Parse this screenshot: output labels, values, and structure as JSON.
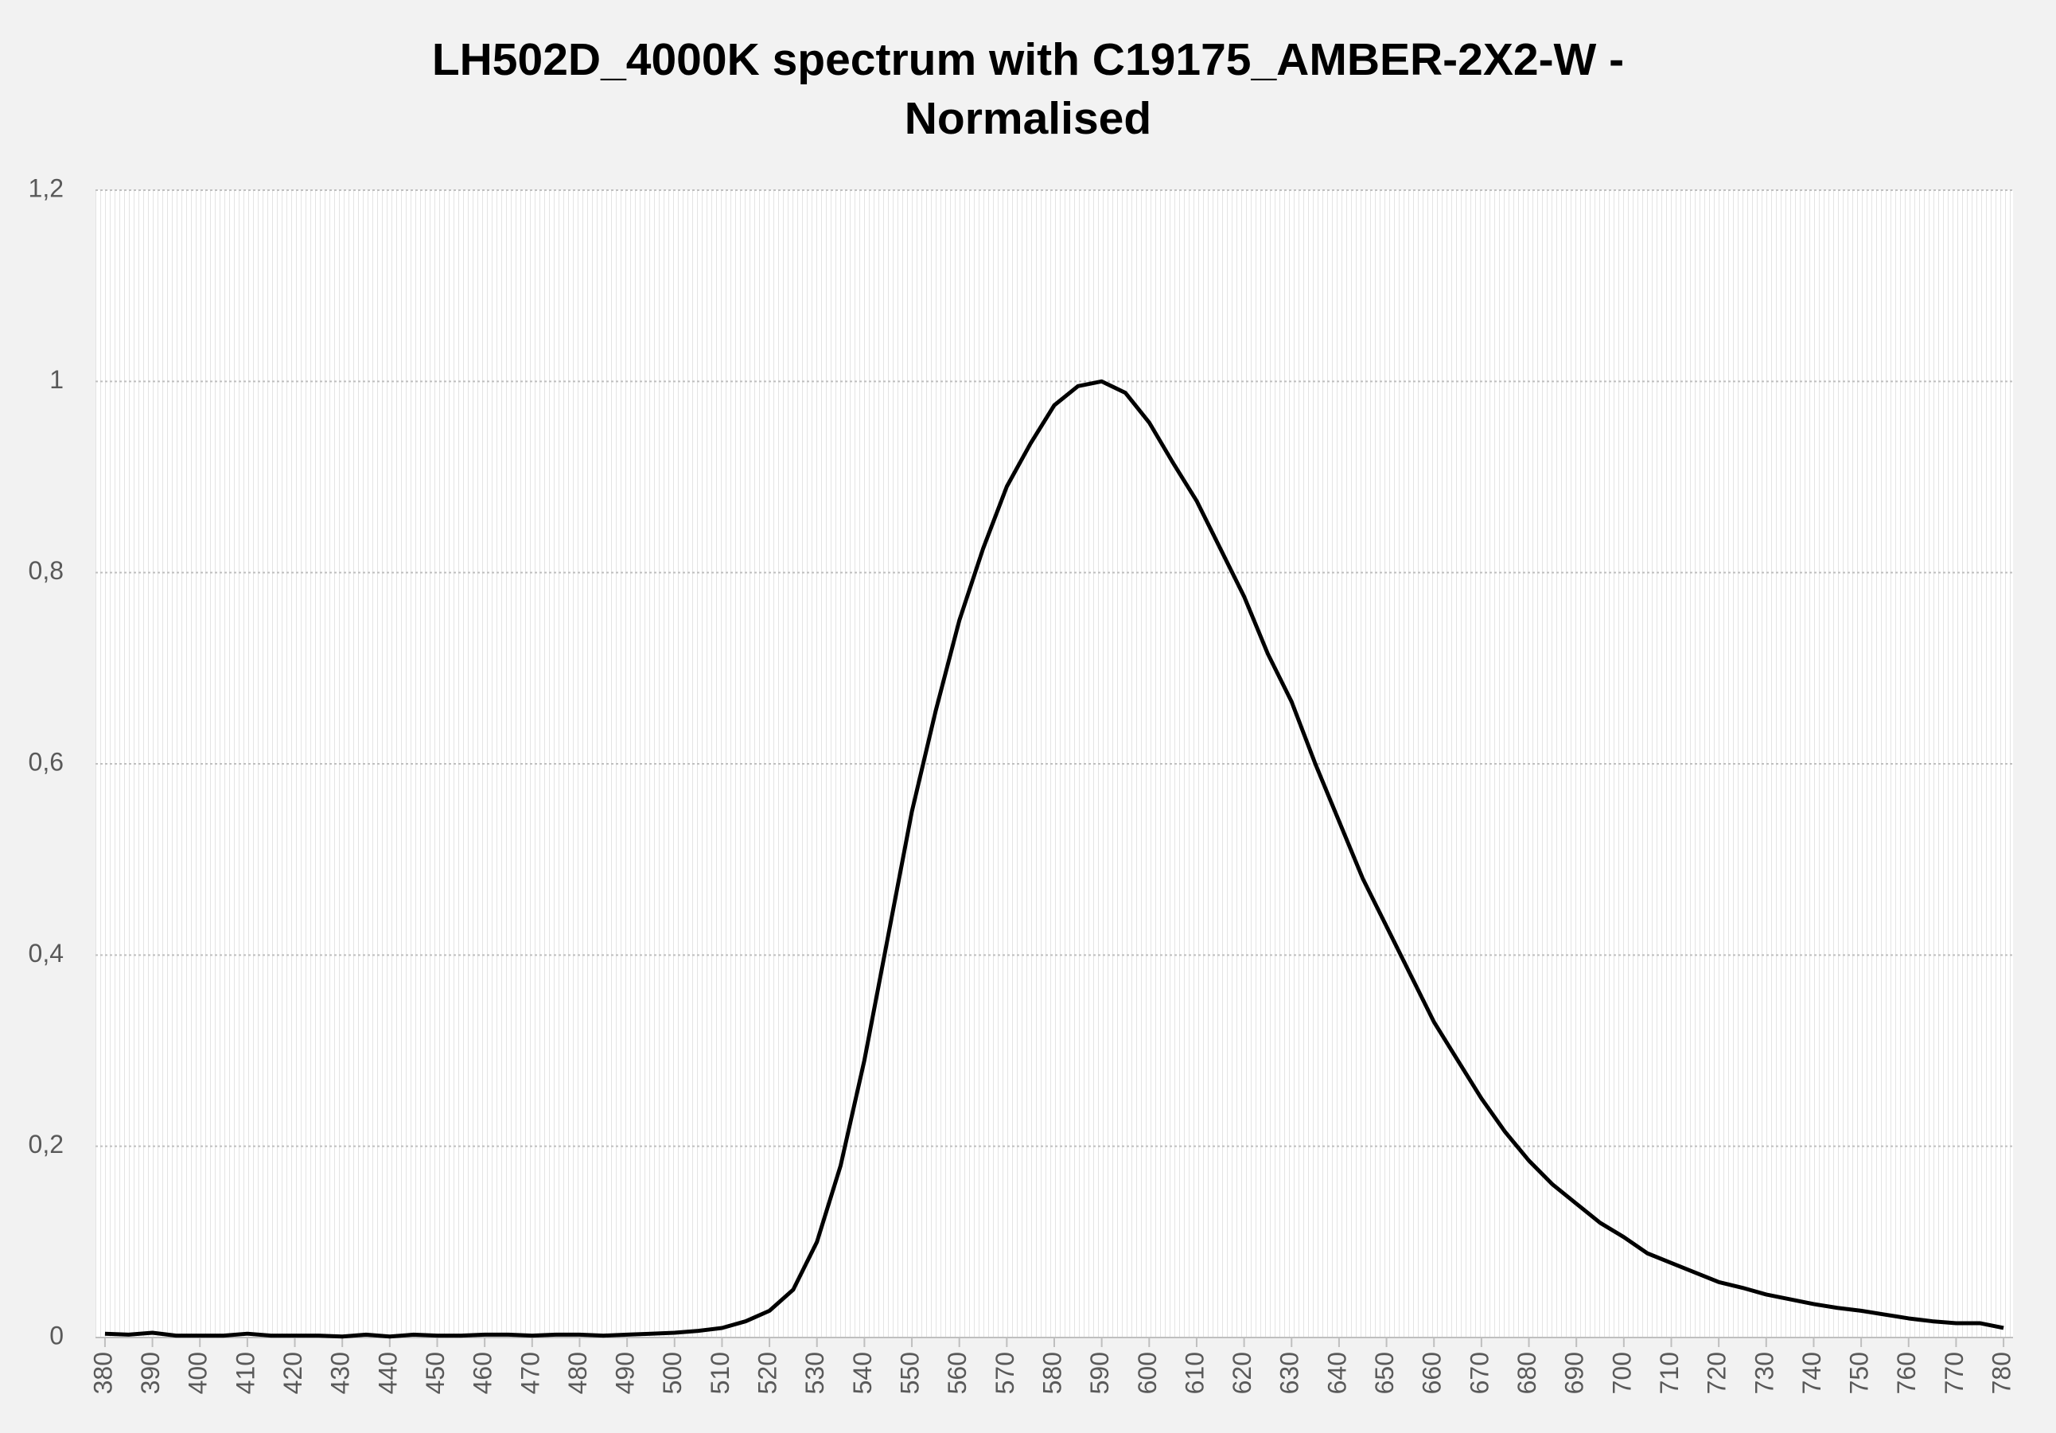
{
  "chart_data": {
    "type": "line",
    "title": "LH502D_4000K spectrum with C19175_AMBER-2X2-W - Normalised",
    "x": [
      380,
      385,
      390,
      395,
      400,
      405,
      410,
      415,
      420,
      425,
      430,
      435,
      440,
      445,
      450,
      455,
      460,
      465,
      470,
      475,
      480,
      485,
      490,
      495,
      500,
      505,
      510,
      515,
      520,
      525,
      530,
      535,
      540,
      545,
      550,
      555,
      560,
      565,
      570,
      575,
      580,
      585,
      590,
      595,
      600,
      605,
      610,
      615,
      620,
      625,
      630,
      635,
      640,
      645,
      650,
      655,
      660,
      665,
      670,
      675,
      680,
      685,
      690,
      695,
      700,
      705,
      710,
      715,
      720,
      725,
      730,
      735,
      740,
      745,
      750,
      755,
      760,
      765,
      770,
      775,
      780
    ],
    "series": [
      {
        "name": "LH502D_4000K spectrum with C19175_AMBER-2X2-W - Normalised",
        "color": "#000000",
        "values": [
          0.004,
          0.003,
          0.005,
          0.002,
          0.002,
          0.002,
          0.004,
          0.002,
          0.002,
          0.002,
          0.001,
          0.003,
          0.001,
          0.003,
          0.002,
          0.002,
          0.003,
          0.003,
          0.002,
          0.003,
          0.003,
          0.002,
          0.003,
          0.004,
          0.005,
          0.007,
          0.01,
          0.017,
          0.028,
          0.05,
          0.1,
          0.18,
          0.29,
          0.42,
          0.55,
          0.655,
          0.75,
          0.825,
          0.89,
          0.935,
          0.975,
          0.995,
          1.0,
          0.988,
          0.957,
          0.915,
          0.875,
          0.825,
          0.775,
          0.715,
          0.665,
          0.6,
          0.54,
          0.48,
          0.43,
          0.38,
          0.33,
          0.29,
          0.25,
          0.215,
          0.185,
          0.16,
          0.14,
          0.12,
          0.105,
          0.088,
          0.078,
          0.068,
          0.058,
          0.052,
          0.045,
          0.04,
          0.035,
          0.031,
          0.028,
          0.024,
          0.02,
          0.017,
          0.015,
          0.015,
          0.01
        ]
      }
    ],
    "xlim": [
      378,
      782
    ],
    "xticks": [
      380,
      390,
      400,
      410,
      420,
      430,
      440,
      450,
      460,
      470,
      480,
      490,
      500,
      510,
      520,
      530,
      540,
      550,
      560,
      570,
      580,
      590,
      600,
      610,
      620,
      630,
      640,
      650,
      660,
      670,
      680,
      690,
      700,
      710,
      720,
      730,
      740,
      750,
      760,
      770,
      780
    ],
    "ylim": [
      0,
      1.2
    ],
    "yticks": [
      0,
      {
        "value": 0.2,
        "label": "0,2"
      },
      {
        "value": 0.4,
        "label": "0,4"
      },
      {
        "value": 0.6,
        "label": "0,6"
      },
      {
        "value": 0.8,
        "label": "0,8"
      },
      1,
      {
        "value": 1.2,
        "label": "1,2"
      }
    ],
    "grid": true
  }
}
